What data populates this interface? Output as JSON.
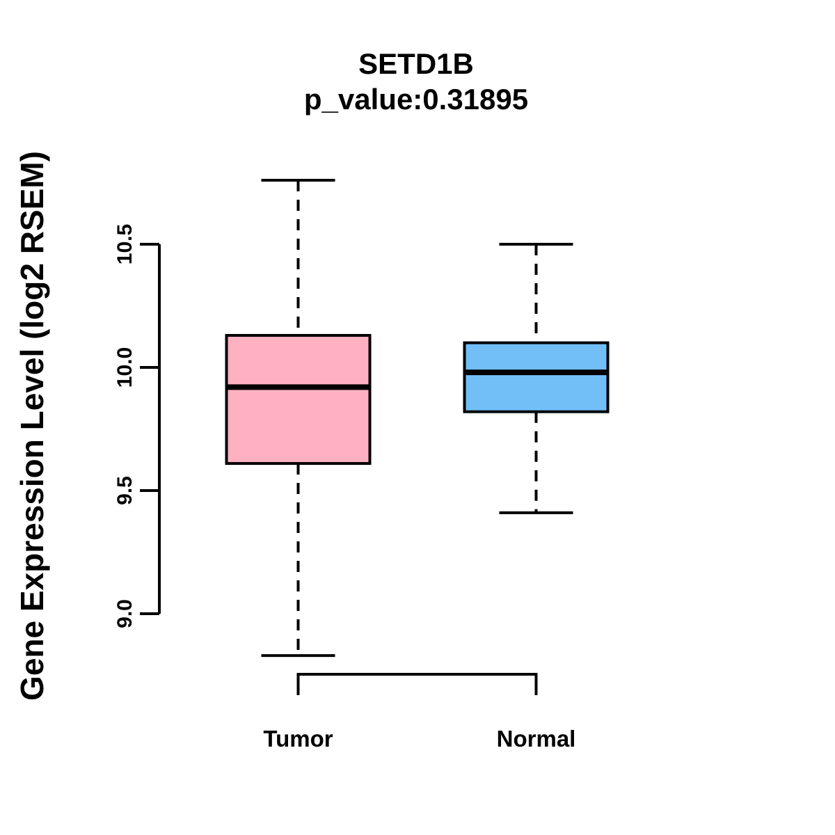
{
  "chart_data": {
    "type": "boxplot",
    "title": "SETD1B",
    "subtitle": "p_value:0.31895",
    "ylabel": "Gene Expression Level (log2 RSEM)",
    "xlabel": "",
    "categories": [
      "Tumor",
      "Normal"
    ],
    "y_ticks": [
      9.0,
      9.5,
      10.0,
      10.5
    ],
    "y_tick_labels": [
      "9.0",
      "9.5",
      "10.0",
      "10.5"
    ],
    "axis_range": [
      9.0,
      10.5
    ],
    "ylim": [
      8.75,
      10.8
    ],
    "grid": false,
    "legend": "none",
    "colors": {
      "box_border": "#000000",
      "median": "#000000",
      "whisker": "#000000",
      "axis": "#000000",
      "text": "#000000",
      "background": "#ffffff"
    },
    "series": [
      {
        "name": "Tumor",
        "fill_color": "#FFB1C2",
        "whisker_low": 8.83,
        "q1": 9.61,
        "median": 9.92,
        "q3": 10.13,
        "whisker_high": 10.76
      },
      {
        "name": "Normal",
        "fill_color": "#72BFF8",
        "whisker_low": 9.41,
        "q1": 9.82,
        "median": 9.98,
        "q3": 10.1,
        "whisker_high": 10.5
      }
    ]
  }
}
